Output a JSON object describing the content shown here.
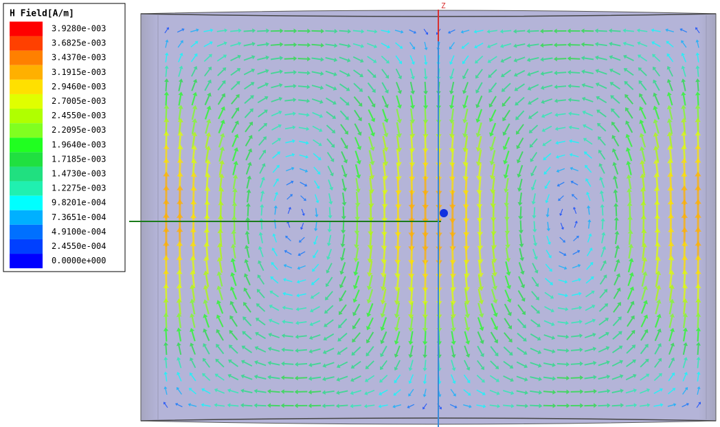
{
  "legend": {
    "title": "H Field[A/m]",
    "labels": [
      "3.9280e-003",
      "3.6825e-003",
      "3.4370e-003",
      "3.1915e-003",
      "2.9460e-003",
      "2.7005e-003",
      "2.4550e-003",
      "2.2095e-003",
      "1.9640e-003",
      "1.7185e-003",
      "1.4730e-003",
      "1.2275e-003",
      "9.8201e-004",
      "7.3651e-004",
      "4.9100e-004",
      "2.4550e-004",
      "0.0000e+000"
    ],
    "colors": [
      "#ff0000",
      "#ff4000",
      "#ff8000",
      "#ffb000",
      "#ffe000",
      "#e0ff00",
      "#b0ff00",
      "#80ff20",
      "#20ff20",
      "#20e040",
      "#20e080",
      "#20f0b0",
      "#00ffff",
      "#00b0ff",
      "#0070ff",
      "#0040ff",
      "#0000ff"
    ]
  },
  "axis": {
    "label": "Z"
  }
}
